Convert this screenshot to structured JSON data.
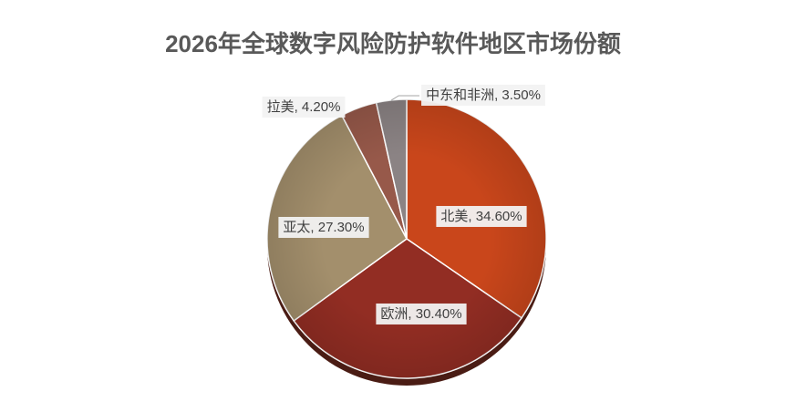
{
  "chart_data": {
    "type": "pie",
    "title": "2026年全球数字风险防护软件地区市场份额",
    "categories": [
      "北美",
      "欧洲",
      "亚太",
      "拉美",
      "中东和非洲"
    ],
    "values": [
      34.6,
      30.4,
      27.3,
      4.2,
      3.5
    ],
    "value_labels": [
      "北美, 34.60%",
      "欧洲, 30.40%",
      "亚太, 27.30%",
      "拉美, 4.20%",
      "中东和非洲, 3.50%"
    ],
    "colors": [
      "#c9461b",
      "#922d23",
      "#a38f6c",
      "#97594a",
      "#8b8384"
    ]
  }
}
